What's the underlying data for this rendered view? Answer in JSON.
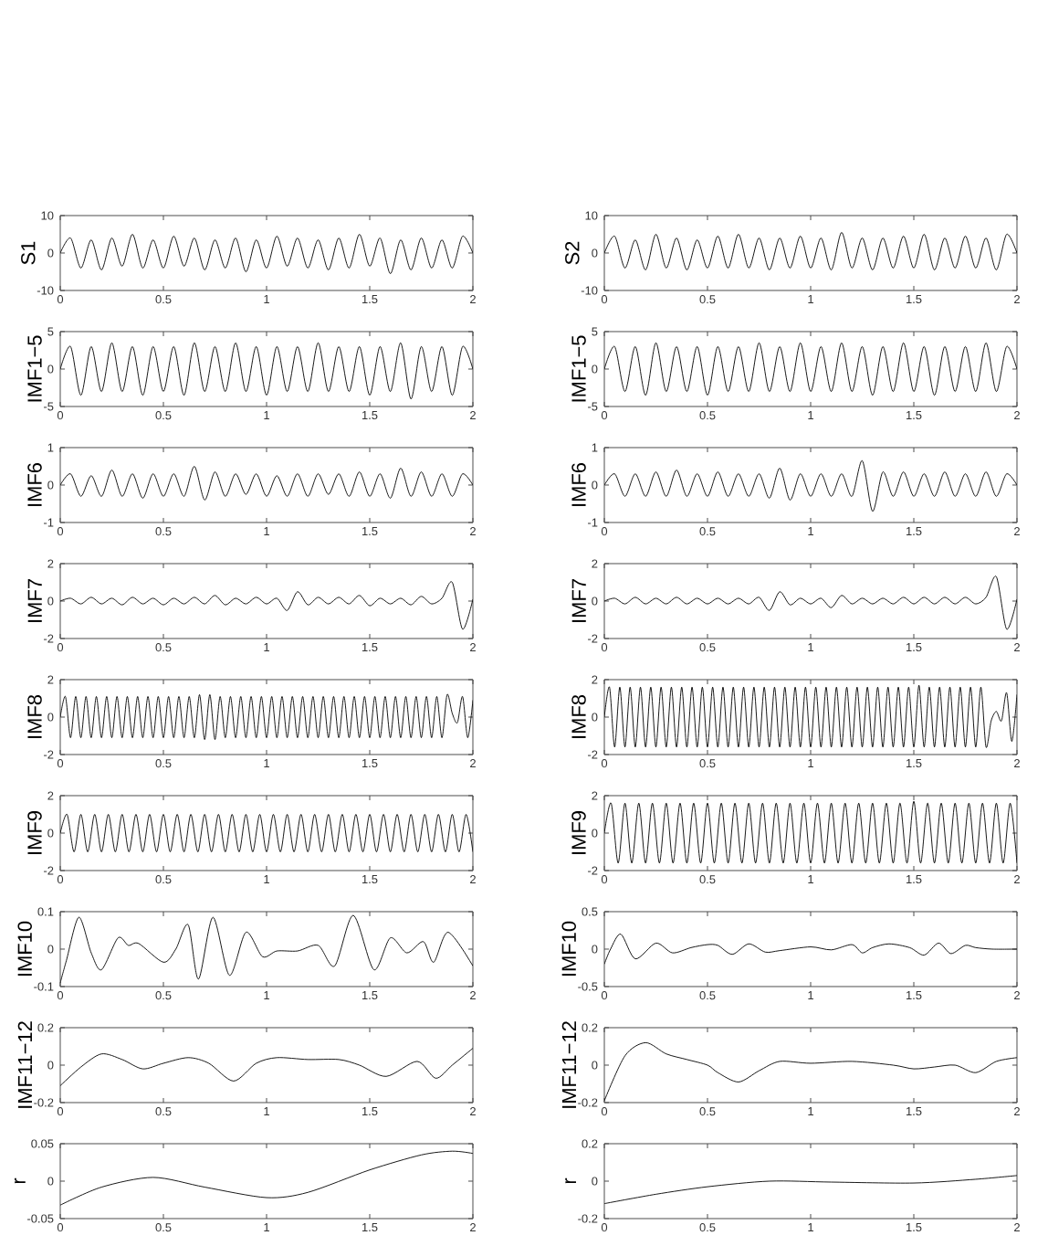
{
  "chart_data": [
    {
      "type": "line",
      "ylabel": "S1",
      "color": "#000000",
      "xlim": [
        0,
        2
      ],
      "ylim": [
        -10,
        10
      ],
      "xticks": [
        0,
        0.5,
        1,
        1.5,
        2
      ],
      "yticks": [
        -10,
        0,
        10
      ],
      "x": [
        0,
        0.05,
        0.1,
        0.15,
        0.2,
        0.25,
        0.3,
        0.35,
        0.4,
        0.45,
        0.5,
        0.55,
        0.6,
        0.65,
        0.7,
        0.75,
        0.8,
        0.85,
        0.9,
        0.95,
        1,
        1.05,
        1.1,
        1.15,
        1.2,
        1.25,
        1.3,
        1.35,
        1.4,
        1.45,
        1.5,
        1.55,
        1.6,
        1.65,
        1.7,
        1.75,
        1.8,
        1.85,
        1.9,
        1.95,
        2
      ],
      "values": [
        0,
        4,
        -4,
        3.5,
        -4.5,
        4,
        -3.5,
        5,
        -4,
        3.5,
        -4,
        4.5,
        -3.5,
        4,
        -4.5,
        3.5,
        -4,
        4,
        -5,
        3.5,
        -4,
        4.5,
        -3.5,
        4,
        -4,
        3.5,
        -4.5,
        4,
        -4,
        5,
        -3.5,
        4,
        -5.5,
        3.5,
        -4.5,
        4,
        -4,
        3.5,
        -4,
        4.5,
        0
      ]
    },
    {
      "type": "line",
      "ylabel": "S2",
      "color": "#000000",
      "xlim": [
        0,
        2
      ],
      "ylim": [
        -10,
        10
      ],
      "xticks": [
        0,
        0.5,
        1,
        1.5,
        2
      ],
      "yticks": [
        -10,
        0,
        10
      ],
      "x": [
        0,
        0.05,
        0.1,
        0.15,
        0.2,
        0.25,
        0.3,
        0.35,
        0.4,
        0.45,
        0.5,
        0.55,
        0.6,
        0.65,
        0.7,
        0.75,
        0.8,
        0.85,
        0.9,
        0.95,
        1,
        1.05,
        1.1,
        1.15,
        1.2,
        1.25,
        1.3,
        1.35,
        1.4,
        1.45,
        1.5,
        1.55,
        1.6,
        1.65,
        1.7,
        1.75,
        1.8,
        1.85,
        1.9,
        1.95,
        2
      ],
      "values": [
        0,
        4.5,
        -4,
        3.5,
        -4.5,
        5,
        -4,
        4,
        -4.5,
        3.5,
        -4,
        4.5,
        -4,
        5,
        -4,
        4,
        -4.5,
        4,
        -4,
        4.5,
        -4,
        4,
        -4.5,
        5.5,
        -4,
        4,
        -4.5,
        4,
        -4,
        4.5,
        -4,
        5,
        -4.5,
        4,
        -4,
        4.5,
        -4,
        4,
        -4.5,
        5,
        0
      ]
    },
    {
      "type": "line",
      "ylabel": "IMF1−5",
      "color": "#000000",
      "xlim": [
        0,
        2
      ],
      "ylim": [
        -5,
        5
      ],
      "xticks": [
        0,
        0.5,
        1,
        1.5,
        2
      ],
      "yticks": [
        -5,
        0,
        5
      ],
      "x": [
        0,
        0.05,
        0.1,
        0.15,
        0.2,
        0.25,
        0.3,
        0.35,
        0.4,
        0.45,
        0.5,
        0.55,
        0.6,
        0.65,
        0.7,
        0.75,
        0.8,
        0.85,
        0.9,
        0.95,
        1,
        1.05,
        1.1,
        1.15,
        1.2,
        1.25,
        1.3,
        1.35,
        1.4,
        1.45,
        1.5,
        1.55,
        1.6,
        1.65,
        1.7,
        1.75,
        1.8,
        1.85,
        1.9,
        1.95,
        2
      ],
      "values": [
        0,
        3,
        -3.5,
        3,
        -3,
        3.5,
        -3,
        3,
        -3.5,
        3,
        -3,
        3,
        -3.5,
        3.5,
        -3,
        3,
        -3,
        3.5,
        -3,
        3,
        -3.5,
        3,
        -3,
        3,
        -3,
        3.5,
        -3,
        3,
        -3,
        3,
        -3.5,
        3,
        -3,
        3.5,
        -4,
        3,
        -3,
        3,
        -3.5,
        3,
        0
      ]
    },
    {
      "type": "line",
      "ylabel": "IMF1−5",
      "color": "#000000",
      "xlim": [
        0,
        2
      ],
      "ylim": [
        -5,
        5
      ],
      "xticks": [
        0,
        0.5,
        1,
        1.5,
        2
      ],
      "yticks": [
        -5,
        0,
        5
      ],
      "x": [
        0,
        0.05,
        0.1,
        0.15,
        0.2,
        0.25,
        0.3,
        0.35,
        0.4,
        0.45,
        0.5,
        0.55,
        0.6,
        0.65,
        0.7,
        0.75,
        0.8,
        0.85,
        0.9,
        0.95,
        1,
        1.05,
        1.1,
        1.15,
        1.2,
        1.25,
        1.3,
        1.35,
        1.4,
        1.45,
        1.5,
        1.55,
        1.6,
        1.65,
        1.7,
        1.75,
        1.8,
        1.85,
        1.9,
        1.95,
        2
      ],
      "values": [
        0,
        3,
        -3,
        3,
        -3.5,
        3.5,
        -3,
        3,
        -3,
        3,
        -3.5,
        3,
        -3,
        3,
        -3,
        3.5,
        -3,
        3,
        -3,
        3.5,
        -3,
        3,
        -3,
        3.5,
        -3,
        3,
        -3.5,
        3,
        -3,
        3.5,
        -3,
        3,
        -3.5,
        3,
        -3,
        3,
        -3,
        3.5,
        -3,
        3,
        0
      ]
    },
    {
      "type": "line",
      "ylabel": "IMF6",
      "color": "#000000",
      "xlim": [
        0,
        2
      ],
      "ylim": [
        -1,
        1
      ],
      "xticks": [
        0,
        0.5,
        1,
        1.5,
        2
      ],
      "yticks": [
        -1,
        0,
        1
      ],
      "x": [
        0,
        0.05,
        0.1,
        0.15,
        0.2,
        0.25,
        0.3,
        0.35,
        0.4,
        0.45,
        0.5,
        0.55,
        0.6,
        0.65,
        0.7,
        0.75,
        0.8,
        0.85,
        0.9,
        0.95,
        1,
        1.05,
        1.1,
        1.15,
        1.2,
        1.25,
        1.3,
        1.35,
        1.4,
        1.45,
        1.5,
        1.55,
        1.6,
        1.65,
        1.7,
        1.75,
        1.8,
        1.85,
        1.9,
        1.95,
        2
      ],
      "values": [
        0,
        0.3,
        -0.3,
        0.25,
        -0.3,
        0.4,
        -0.3,
        0.3,
        -0.35,
        0.3,
        -0.3,
        0.3,
        -0.3,
        0.5,
        -0.4,
        0.35,
        -0.3,
        0.3,
        -0.25,
        0.3,
        -0.3,
        0.25,
        -0.3,
        0.3,
        -0.3,
        0.3,
        -0.25,
        0.3,
        -0.3,
        0.35,
        -0.3,
        0.3,
        -0.35,
        0.45,
        -0.3,
        0.35,
        -0.3,
        0.3,
        -0.3,
        0.3,
        0
      ]
    },
    {
      "type": "line",
      "ylabel": "IMF6",
      "color": "#000000",
      "xlim": [
        0,
        2
      ],
      "ylim": [
        -1,
        1
      ],
      "xticks": [
        0,
        0.5,
        1,
        1.5,
        2
      ],
      "yticks": [
        -1,
        0,
        1
      ],
      "x": [
        0,
        0.05,
        0.1,
        0.15,
        0.2,
        0.25,
        0.3,
        0.35,
        0.4,
        0.45,
        0.5,
        0.55,
        0.6,
        0.65,
        0.7,
        0.75,
        0.8,
        0.85,
        0.9,
        0.95,
        1,
        1.05,
        1.1,
        1.15,
        1.2,
        1.25,
        1.3,
        1.35,
        1.4,
        1.45,
        1.5,
        1.55,
        1.6,
        1.65,
        1.7,
        1.75,
        1.8,
        1.85,
        1.9,
        1.95,
        2
      ],
      "values": [
        0,
        0.3,
        -0.3,
        0.3,
        -0.3,
        0.35,
        -0.3,
        0.4,
        -0.3,
        0.3,
        -0.3,
        0.35,
        -0.3,
        0.3,
        -0.3,
        0.3,
        -0.35,
        0.45,
        -0.4,
        0.3,
        -0.3,
        0.3,
        -0.3,
        0.3,
        -0.3,
        0.65,
        -0.7,
        0.35,
        -0.3,
        0.35,
        -0.3,
        0.3,
        -0.3,
        0.35,
        -0.3,
        0.3,
        -0.3,
        0.35,
        -0.3,
        0.3,
        0
      ]
    },
    {
      "type": "line",
      "ylabel": "IMF7",
      "color": "#000000",
      "xlim": [
        0,
        2
      ],
      "ylim": [
        -2,
        2
      ],
      "xticks": [
        0,
        0.5,
        1,
        1.5,
        2
      ],
      "yticks": [
        -2,
        0,
        2
      ],
      "x": [
        0,
        0.05,
        0.1,
        0.15,
        0.2,
        0.25,
        0.3,
        0.35,
        0.4,
        0.45,
        0.5,
        0.55,
        0.6,
        0.65,
        0.7,
        0.75,
        0.8,
        0.85,
        0.9,
        0.95,
        1,
        1.05,
        1.1,
        1.15,
        1.2,
        1.25,
        1.3,
        1.35,
        1.4,
        1.45,
        1.5,
        1.55,
        1.6,
        1.65,
        1.7,
        1.75,
        1.8,
        1.85,
        1.9,
        1.95,
        2
      ],
      "values": [
        0,
        0.15,
        -0.15,
        0.2,
        -0.15,
        0.15,
        -0.2,
        0.2,
        -0.15,
        0.15,
        -0.2,
        0.15,
        -0.15,
        0.2,
        -0.15,
        0.3,
        -0.2,
        0.15,
        -0.15,
        0.2,
        -0.15,
        0.15,
        -0.5,
        0.5,
        -0.2,
        0.2,
        -0.15,
        0.2,
        -0.15,
        0.3,
        -0.25,
        0.15,
        -0.15,
        0.15,
        -0.2,
        0.25,
        -0.15,
        0.15,
        1,
        -1.5,
        0.1
      ]
    },
    {
      "type": "line",
      "ylabel": "IMF7",
      "color": "#000000",
      "xlim": [
        0,
        2
      ],
      "ylim": [
        -2,
        2
      ],
      "xticks": [
        0,
        0.5,
        1,
        1.5,
        2
      ],
      "yticks": [
        -2,
        0,
        2
      ],
      "x": [
        0,
        0.05,
        0.1,
        0.15,
        0.2,
        0.25,
        0.3,
        0.35,
        0.4,
        0.45,
        0.5,
        0.55,
        0.6,
        0.65,
        0.7,
        0.75,
        0.8,
        0.85,
        0.9,
        0.95,
        1,
        1.05,
        1.1,
        1.15,
        1.2,
        1.25,
        1.3,
        1.35,
        1.4,
        1.45,
        1.5,
        1.55,
        1.6,
        1.65,
        1.7,
        1.75,
        1.8,
        1.85,
        1.9,
        1.95,
        2
      ],
      "values": [
        0,
        0.15,
        -0.15,
        0.2,
        -0.15,
        0.15,
        -0.15,
        0.2,
        -0.15,
        0.15,
        -0.15,
        0.15,
        -0.15,
        0.15,
        -0.15,
        0.2,
        -0.5,
        0.5,
        -0.2,
        0.15,
        -0.15,
        0.15,
        -0.35,
        0.3,
        -0.15,
        0.15,
        -0.15,
        0.15,
        -0.15,
        0.2,
        -0.15,
        0.2,
        -0.15,
        0.2,
        -0.15,
        0.2,
        -0.15,
        0.2,
        1.3,
        -1.5,
        0.1
      ]
    },
    {
      "type": "line",
      "ylabel": "IMF8",
      "color": "#000000",
      "xlim": [
        0,
        2
      ],
      "ylim": [
        -2,
        2
      ],
      "xticks": [
        0,
        0.5,
        1,
        1.5,
        2
      ],
      "yticks": [
        -2,
        0,
        2
      ],
      "x": [
        0,
        0.025,
        0.05,
        0.075,
        0.1,
        0.125,
        0.15,
        0.175,
        0.2,
        0.225,
        0.25,
        0.275,
        0.3,
        0.325,
        0.35,
        0.375,
        0.4,
        0.425,
        0.45,
        0.475,
        0.5,
        0.525,
        0.55,
        0.575,
        0.6,
        0.625,
        0.65,
        0.675,
        0.7,
        0.725,
        0.75,
        0.775,
        0.8,
        0.825,
        0.85,
        0.875,
        0.9,
        0.925,
        0.95,
        0.975,
        1,
        1.025,
        1.05,
        1.075,
        1.1,
        1.125,
        1.15,
        1.175,
        1.2,
        1.225,
        1.25,
        1.275,
        1.3,
        1.325,
        1.35,
        1.375,
        1.4,
        1.425,
        1.45,
        1.475,
        1.5,
        1.525,
        1.55,
        1.575,
        1.6,
        1.625,
        1.65,
        1.675,
        1.7,
        1.725,
        1.75,
        1.775,
        1.8,
        1.825,
        1.85,
        1.875,
        1.9,
        1.925,
        1.95,
        1.975,
        2
      ],
      "values": [
        0,
        1.1,
        -1.1,
        1.1,
        -1.1,
        1.1,
        -1.1,
        1.1,
        -1.1,
        1.1,
        -1.1,
        1.1,
        -1.1,
        1.1,
        -1.1,
        1.1,
        -1.1,
        1.1,
        -1.1,
        1.1,
        -1.1,
        1.1,
        -1.1,
        1.1,
        -1.1,
        1.1,
        -1.1,
        1.2,
        -1.2,
        1.2,
        -1.2,
        1.1,
        -1.1,
        1.1,
        -1.1,
        1.1,
        -1.1,
        1.1,
        -1.1,
        1.1,
        -1.1,
        1.1,
        -1.1,
        1.1,
        -1.1,
        1.1,
        -1.1,
        1.1,
        -1.1,
        1.1,
        -1.1,
        1.1,
        -1.1,
        1.1,
        -1.1,
        1.1,
        -1.1,
        1.1,
        -1.1,
        1.1,
        -1.1,
        1.1,
        -1.1,
        1.1,
        -1.1,
        1.1,
        -1.1,
        1.1,
        -1.1,
        1.1,
        -1.1,
        1.1,
        -1.1,
        1.1,
        -1.1,
        1.2,
        0.2,
        -0.3,
        1.1,
        -1.1,
        0.9
      ]
    },
    {
      "type": "line",
      "ylabel": "IMF8",
      "color": "#000000",
      "xlim": [
        0,
        2
      ],
      "ylim": [
        -2,
        2
      ],
      "xticks": [
        0,
        0.5,
        1,
        1.5,
        2
      ],
      "yticks": [
        -2,
        0,
        2
      ],
      "x": [
        0,
        0.025,
        0.05,
        0.075,
        0.1,
        0.125,
        0.15,
        0.175,
        0.2,
        0.225,
        0.25,
        0.275,
        0.3,
        0.325,
        0.35,
        0.375,
        0.4,
        0.425,
        0.45,
        0.475,
        0.5,
        0.525,
        0.55,
        0.575,
        0.6,
        0.625,
        0.65,
        0.675,
        0.7,
        0.725,
        0.75,
        0.775,
        0.8,
        0.825,
        0.85,
        0.875,
        0.9,
        0.925,
        0.95,
        0.975,
        1,
        1.025,
        1.05,
        1.075,
        1.1,
        1.125,
        1.15,
        1.175,
        1.2,
        1.225,
        1.25,
        1.275,
        1.3,
        1.325,
        1.35,
        1.375,
        1.4,
        1.425,
        1.45,
        1.475,
        1.5,
        1.525,
        1.55,
        1.575,
        1.6,
        1.625,
        1.65,
        1.675,
        1.7,
        1.725,
        1.75,
        1.775,
        1.8,
        1.825,
        1.85,
        1.875,
        1.9,
        1.925,
        1.95,
        1.975,
        2
      ],
      "values": [
        0,
        1.6,
        -1.6,
        1.6,
        -1.6,
        1.6,
        -1.6,
        1.6,
        -1.6,
        1.6,
        -1.6,
        1.6,
        -1.6,
        1.6,
        -1.6,
        1.6,
        -1.6,
        1.6,
        -1.6,
        1.6,
        -1.6,
        1.6,
        -1.6,
        1.6,
        -1.6,
        1.6,
        -1.6,
        1.6,
        -1.6,
        1.6,
        -1.6,
        1.6,
        -1.6,
        1.6,
        -1.6,
        1.6,
        -1.6,
        1.6,
        -1.6,
        1.6,
        -1.6,
        1.6,
        -1.6,
        1.6,
        -1.6,
        1.6,
        -1.6,
        1.6,
        -1.6,
        1.6,
        -1.6,
        1.6,
        -1.6,
        1.6,
        -1.6,
        1.6,
        -1.6,
        1.6,
        -1.6,
        1.6,
        -1.6,
        1.7,
        -1.6,
        1.6,
        -1.6,
        1.6,
        -1.6,
        1.6,
        -1.6,
        1.6,
        -1.6,
        1.6,
        -1.6,
        1.6,
        -1.6,
        -0.2,
        0.3,
        -0.2,
        1.3,
        -1.3,
        1.2
      ]
    },
    {
      "type": "line",
      "ylabel": "IMF9",
      "color": "#000000",
      "xlim": [
        0,
        2
      ],
      "ylim": [
        -2,
        2
      ],
      "xticks": [
        0,
        0.5,
        1,
        1.5,
        2
      ],
      "yticks": [
        -2,
        0,
        2
      ],
      "x": [
        0,
        0.033,
        0.067,
        0.1,
        0.133,
        0.167,
        0.2,
        0.233,
        0.267,
        0.3,
        0.333,
        0.367,
        0.4,
        0.433,
        0.467,
        0.5,
        0.533,
        0.567,
        0.6,
        0.633,
        0.667,
        0.7,
        0.733,
        0.767,
        0.8,
        0.833,
        0.867,
        0.9,
        0.933,
        0.967,
        1,
        1.033,
        1.067,
        1.1,
        1.133,
        1.167,
        1.2,
        1.233,
        1.267,
        1.3,
        1.333,
        1.367,
        1.4,
        1.433,
        1.467,
        1.5,
        1.533,
        1.567,
        1.6,
        1.633,
        1.667,
        1.7,
        1.733,
        1.767,
        1.8,
        1.833,
        1.867,
        1.9,
        1.933,
        1.967,
        2
      ],
      "values": [
        0,
        1,
        -1,
        1,
        -1,
        1,
        -1,
        1,
        -1,
        1,
        -1,
        1,
        -1,
        1,
        -1,
        1,
        -1,
        1,
        -1,
        1,
        -1,
        1,
        -1,
        1,
        -1,
        1,
        -1,
        1,
        -1,
        1,
        -1,
        1,
        -1,
        1,
        -1,
        1,
        -1,
        1,
        -1,
        1,
        -1,
        1,
        -1,
        1,
        -1,
        1,
        -1,
        1,
        -1,
        1,
        -1,
        1,
        -1,
        1,
        -1,
        1,
        -1,
        1,
        -1,
        1,
        -1
      ]
    },
    {
      "type": "line",
      "ylabel": "IMF9",
      "color": "#000000",
      "xlim": [
        0,
        2
      ],
      "ylim": [
        -2,
        2
      ],
      "xticks": [
        0,
        0.5,
        1,
        1.5,
        2
      ],
      "yticks": [
        -2,
        0,
        2
      ],
      "x": [
        0,
        0.033,
        0.067,
        0.1,
        0.133,
        0.167,
        0.2,
        0.233,
        0.267,
        0.3,
        0.333,
        0.367,
        0.4,
        0.433,
        0.467,
        0.5,
        0.533,
        0.567,
        0.6,
        0.633,
        0.667,
        0.7,
        0.733,
        0.767,
        0.8,
        0.833,
        0.867,
        0.9,
        0.933,
        0.967,
        1,
        1.033,
        1.067,
        1.1,
        1.133,
        1.167,
        1.2,
        1.233,
        1.267,
        1.3,
        1.333,
        1.367,
        1.4,
        1.433,
        1.467,
        1.5,
        1.533,
        1.567,
        1.6,
        1.633,
        1.667,
        1.7,
        1.733,
        1.767,
        1.8,
        1.833,
        1.867,
        1.9,
        1.933,
        1.967,
        2
      ],
      "values": [
        0,
        1.6,
        -1.6,
        1.6,
        -1.6,
        1.6,
        -1.6,
        1.6,
        -1.6,
        1.6,
        -1.6,
        1.6,
        -1.6,
        1.6,
        -1.6,
        1.6,
        -1.6,
        1.6,
        -1.6,
        1.6,
        -1.6,
        1.6,
        -1.6,
        1.6,
        -1.6,
        1.6,
        -1.6,
        1.6,
        -1.6,
        1.6,
        -1.6,
        1.6,
        -1.6,
        1.6,
        -1.6,
        1.6,
        -1.6,
        1.6,
        -1.6,
        1.6,
        -1.6,
        1.6,
        -1.6,
        1.6,
        -1.6,
        1.7,
        -1.6,
        1.6,
        -1.6,
        1.6,
        -1.6,
        1.6,
        -1.6,
        1.6,
        -1.6,
        1.6,
        -1.6,
        1.6,
        -1.6,
        1.6,
        -1.6
      ]
    },
    {
      "type": "line",
      "ylabel": "IMF10",
      "color": "#000000",
      "xlim": [
        0,
        2
      ],
      "ylim": [
        -0.1,
        0.1
      ],
      "xticks": [
        0,
        0.5,
        1,
        1.5,
        2
      ],
      "yticks": [
        -0.1,
        0,
        0.1
      ],
      "x": [
        0,
        0.03,
        0.09,
        0.15,
        0.2,
        0.28,
        0.33,
        0.38,
        0.5,
        0.56,
        0.62,
        0.67,
        0.74,
        0.82,
        0.9,
        0.98,
        1.05,
        1.15,
        1.25,
        1.33,
        1.42,
        1.52,
        1.6,
        1.68,
        1.76,
        1.81,
        1.88,
        2
      ],
      "values": [
        -0.09,
        -0.03,
        0.085,
        -0.01,
        -0.055,
        0.03,
        0.01,
        0.015,
        -0.035,
        0,
        0.065,
        -0.08,
        0.085,
        -0.07,
        0.045,
        -0.02,
        -0.005,
        -0.005,
        0.01,
        -0.045,
        0.09,
        -0.055,
        0.03,
        -0.01,
        0.02,
        -0.035,
        0.045,
        -0.045
      ]
    },
    {
      "type": "line",
      "ylabel": "IMF10",
      "color": "#000000",
      "xlim": [
        0,
        2
      ],
      "ylim": [
        -0.5,
        0.5
      ],
      "xticks": [
        0,
        0.5,
        1,
        1.5,
        2
      ],
      "yticks": [
        -0.5,
        0,
        0.5
      ],
      "x": [
        0,
        0.03,
        0.08,
        0.15,
        0.25,
        0.33,
        0.42,
        0.5,
        0.55,
        0.62,
        0.7,
        0.78,
        0.85,
        1,
        1.1,
        1.2,
        1.25,
        1.3,
        1.38,
        1.48,
        1.55,
        1.62,
        1.68,
        1.75,
        1.8,
        1.88,
        2
      ],
      "values": [
        -0.2,
        0,
        0.2,
        -0.13,
        0.08,
        -0.05,
        0.02,
        0.06,
        0.05,
        -0.07,
        0.07,
        -0.04,
        -0.02,
        0.03,
        -0.01,
        0.06,
        -0.05,
        0.02,
        0.07,
        0.02,
        -0.08,
        0.08,
        -0.06,
        0.05,
        0.02,
        0,
        0
      ]
    },
    {
      "type": "line",
      "ylabel": "IMF11−12",
      "color": "#000000",
      "xlim": [
        0,
        2
      ],
      "ylim": [
        -0.2,
        0.2
      ],
      "xticks": [
        0,
        0.5,
        1,
        1.5,
        2
      ],
      "yticks": [
        -0.2,
        0,
        0.2
      ],
      "x": [
        0,
        0.1,
        0.2,
        0.3,
        0.4,
        0.5,
        0.62,
        0.72,
        0.84,
        0.95,
        1.05,
        1.2,
        1.35,
        1.45,
        1.58,
        1.73,
        1.82,
        1.9,
        2
      ],
      "values": [
        -0.11,
        -0.01,
        0.06,
        0.03,
        -0.02,
        0.01,
        0.04,
        0.01,
        -0.085,
        0.01,
        0.04,
        0.03,
        0.03,
        0,
        -0.06,
        0.02,
        -0.07,
        0,
        0.09
      ]
    },
    {
      "type": "line",
      "ylabel": "IMF11−12",
      "color": "#000000",
      "xlim": [
        0,
        2
      ],
      "ylim": [
        -0.2,
        0.2
      ],
      "xticks": [
        0,
        0.5,
        1,
        1.5,
        2
      ],
      "yticks": [
        -0.2,
        0,
        0.2
      ],
      "x": [
        0,
        0.1,
        0.2,
        0.3,
        0.4,
        0.5,
        0.55,
        0.65,
        0.75,
        0.85,
        1,
        1.2,
        1.4,
        1.5,
        1.6,
        1.7,
        1.8,
        1.9,
        2
      ],
      "values": [
        -0.19,
        0.05,
        0.12,
        0.06,
        0.03,
        0,
        -0.04,
        -0.09,
        -0.03,
        0.02,
        0.01,
        0.02,
        0,
        -0.02,
        -0.01,
        0,
        -0.04,
        0.02,
        0.04
      ]
    },
    {
      "type": "line",
      "ylabel": "r",
      "color": "#000000",
      "xlim": [
        0,
        2
      ],
      "ylim": [
        -0.05,
        0.05
      ],
      "xticks": [
        0,
        0.5,
        1,
        1.5,
        2
      ],
      "yticks": [
        -0.05,
        0,
        0.05
      ],
      "x": [
        0,
        0.2,
        0.45,
        0.7,
        1,
        1.2,
        1.5,
        1.75,
        1.9,
        2
      ],
      "values": [
        -0.032,
        -0.008,
        0.005,
        -0.008,
        -0.022,
        -0.015,
        0.015,
        0.035,
        0.04,
        0.037
      ]
    },
    {
      "type": "line",
      "ylabel": "r",
      "color": "#000000",
      "xlim": [
        0,
        2
      ],
      "ylim": [
        -0.2,
        0.2
      ],
      "xticks": [
        0,
        0.5,
        1,
        1.5,
        2
      ],
      "yticks": [
        -0.2,
        0,
        0.2
      ],
      "x": [
        0,
        0.25,
        0.5,
        0.8,
        1.1,
        1.5,
        1.8,
        2
      ],
      "values": [
        -0.12,
        -0.07,
        -0.03,
        0,
        -0.005,
        -0.01,
        0.01,
        0.03
      ]
    }
  ]
}
